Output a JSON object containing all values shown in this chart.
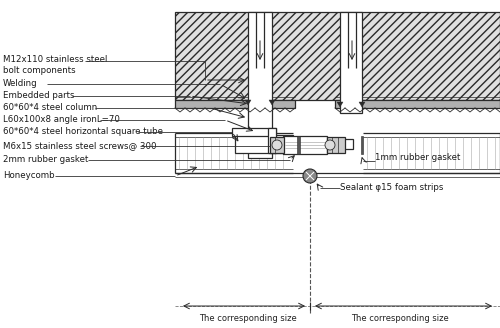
{
  "labels": {
    "bolt": "M12x110 stainless steel\nbolt components",
    "welding": "Welding",
    "embedded": "Embedded parts",
    "column": "60*60*4 steel column",
    "angle": "L60x100x8 angle ironL=70",
    "square_tube": "60*60*4 steel horizontal square tube",
    "screws": "M6x15 stainless steel screws@ 300",
    "rubber2mm": "2mm rubber gasket",
    "honeycomb": "Honeycomb",
    "rubber1mm": "1mm rubber gasket",
    "sealant": "Sealant φ15 foam strips",
    "size_left": "The corresponding size",
    "size_right": "The corresponding size"
  },
  "figsize": [
    5.0,
    3.28
  ],
  "dpi": 100
}
